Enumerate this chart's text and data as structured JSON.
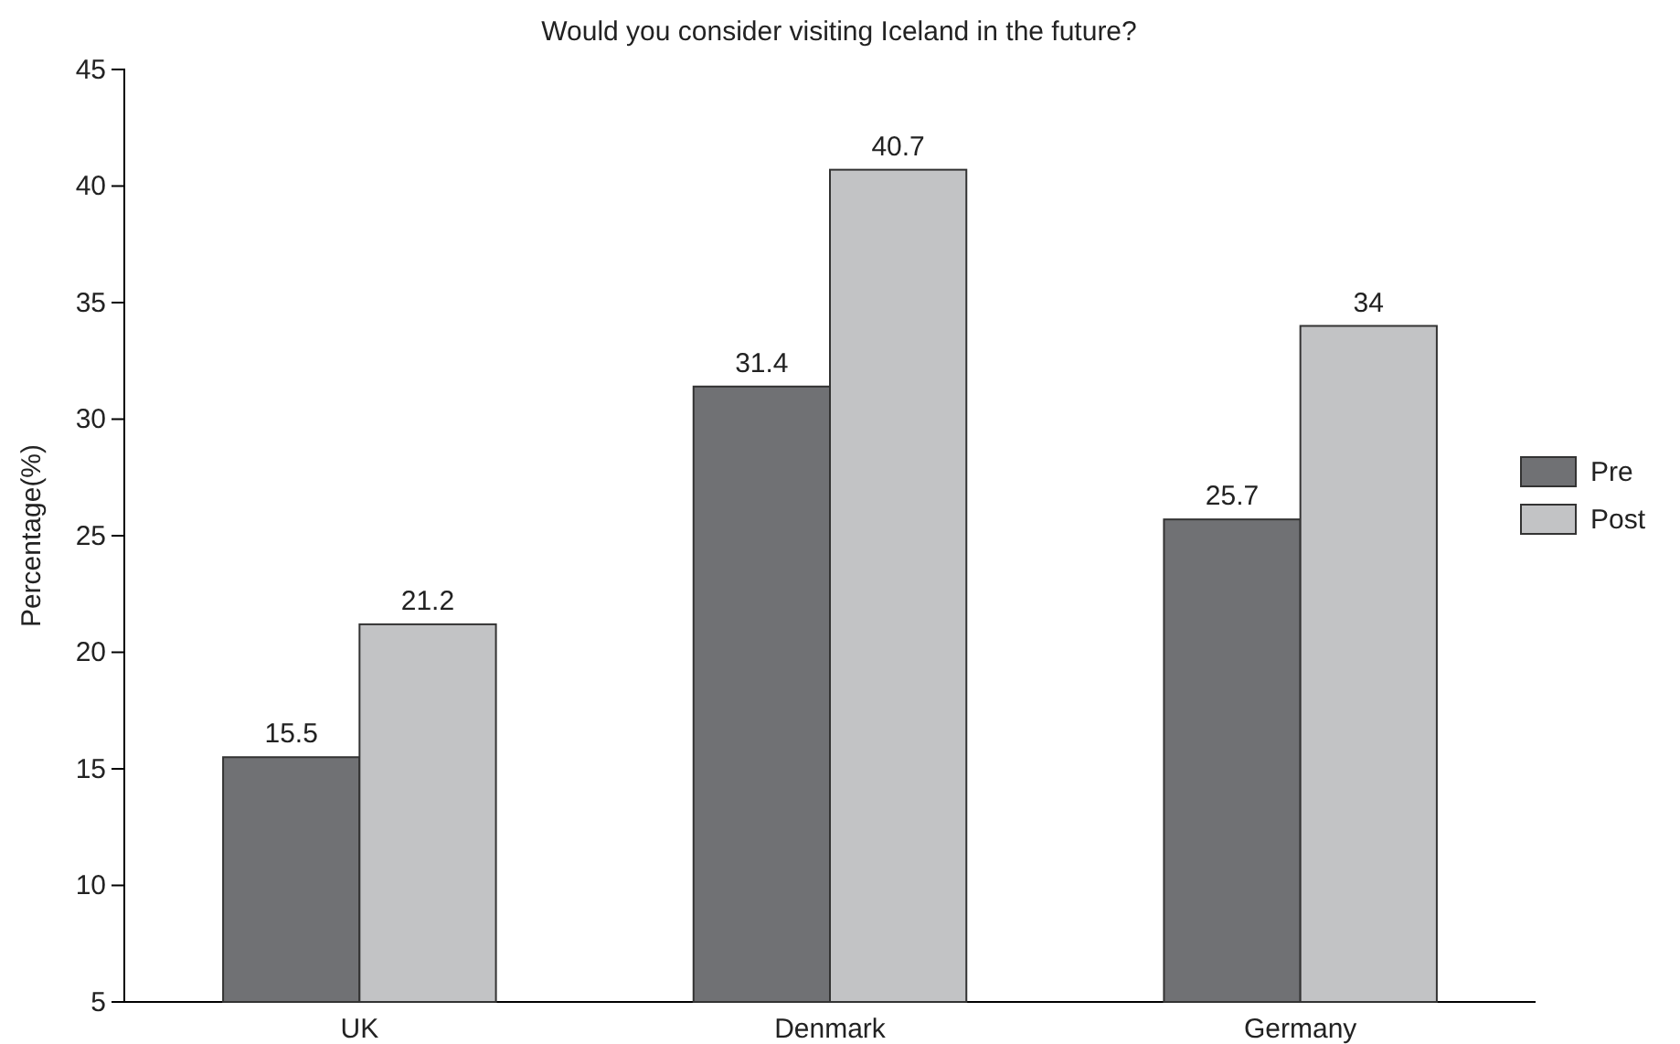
{
  "chart_data": {
    "type": "bar",
    "title": "Would you consider visiting Iceland in the future?",
    "ylabel": "Percentage(%)",
    "categories": [
      "UK",
      "Denmark",
      "Germany"
    ],
    "series": [
      {
        "name": "Pre",
        "color": "#707174",
        "values": [
          15.5,
          31.4,
          25.7
        ]
      },
      {
        "name": "Post",
        "color": "#c2c3c5",
        "values": [
          21.2,
          40.7,
          34
        ]
      }
    ],
    "ylim": [
      5,
      45
    ],
    "yticks": [
      5,
      10,
      15,
      20,
      25,
      30,
      35,
      40,
      45
    ],
    "data_labels": true,
    "legend": "right",
    "grid": false
  }
}
